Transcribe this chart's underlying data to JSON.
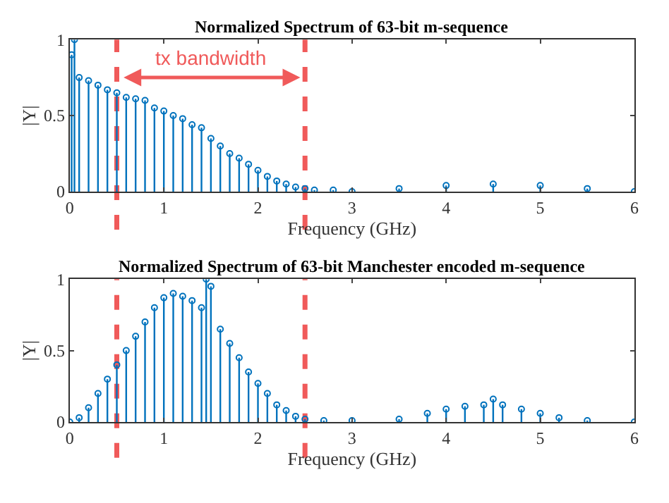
{
  "chart_data": [
    {
      "type": "lollipop",
      "title": "Normalized Spectrum of 63-bit m-sequence",
      "xlabel": "Frequency (GHz)",
      "ylabel": "|Y|",
      "x": [
        0.02,
        0.05,
        0.1,
        0.2,
        0.3,
        0.4,
        0.5,
        0.6,
        0.7,
        0.8,
        0.9,
        1.0,
        1.1,
        1.2,
        1.3,
        1.4,
        1.5,
        1.6,
        1.7,
        1.8,
        1.9,
        2.0,
        2.1,
        2.2,
        2.3,
        2.4,
        2.5,
        2.6,
        2.8,
        3.0,
        3.5,
        4.0,
        4.5,
        5.0,
        5.5,
        6.0
      ],
      "series": [
        {
          "color": "#0072bd",
          "values": [
            0.9,
            1.0,
            0.75,
            0.73,
            0.7,
            0.67,
            0.65,
            0.62,
            0.61,
            0.6,
            0.55,
            0.53,
            0.5,
            0.48,
            0.44,
            0.42,
            0.35,
            0.3,
            0.25,
            0.22,
            0.18,
            0.14,
            0.1,
            0.07,
            0.05,
            0.03,
            0.02,
            0.01,
            0.01,
            0.0,
            0.02,
            0.04,
            0.05,
            0.04,
            0.02,
            0.0
          ]
        }
      ],
      "marker": "circle",
      "xlim": [
        0,
        6
      ],
      "xticks": [
        0,
        1,
        2,
        3,
        4,
        5,
        6
      ],
      "ylim": [
        0,
        1
      ],
      "yticks": [
        0,
        0.5,
        1
      ],
      "ref_lines": [
        {
          "axis": "x",
          "value": 0.5,
          "color": "#f05a5a",
          "line_style": "dashed"
        },
        {
          "axis": "x",
          "value": 2.5,
          "color": "#f05a5a",
          "line_style": "dashed"
        }
      ],
      "annotations": [
        "tx bandwidth"
      ]
    },
    {
      "type": "lollipop",
      "title": "Normalized Spectrum of 63-bit Manchester encoded m-sequence",
      "xlabel": "Frequency (GHz)",
      "ylabel": "|Y|",
      "x": [
        0.0,
        0.1,
        0.2,
        0.3,
        0.4,
        0.5,
        0.6,
        0.7,
        0.8,
        0.9,
        1.0,
        1.1,
        1.2,
        1.3,
        1.4,
        1.45,
        1.5,
        1.6,
        1.7,
        1.8,
        1.9,
        2.0,
        2.1,
        2.2,
        2.3,
        2.4,
        2.5,
        2.7,
        3.0,
        3.5,
        3.8,
        4.0,
        4.2,
        4.4,
        4.5,
        4.6,
        4.8,
        5.0,
        5.2,
        5.5,
        6.0
      ],
      "series": [
        {
          "color": "#0072bd",
          "values": [
            0.0,
            0.03,
            0.1,
            0.2,
            0.3,
            0.4,
            0.5,
            0.6,
            0.7,
            0.8,
            0.87,
            0.9,
            0.88,
            0.85,
            0.8,
            1.0,
            0.95,
            0.65,
            0.55,
            0.45,
            0.35,
            0.27,
            0.2,
            0.12,
            0.08,
            0.04,
            0.02,
            0.01,
            0.01,
            0.02,
            0.06,
            0.09,
            0.11,
            0.12,
            0.16,
            0.12,
            0.09,
            0.06,
            0.03,
            0.01,
            0.0
          ]
        }
      ],
      "marker": "circle",
      "xlim": [
        0,
        6
      ],
      "xticks": [
        0,
        1,
        2,
        3,
        4,
        5,
        6
      ],
      "ylim": [
        0,
        1
      ],
      "yticks": [
        0,
        0.5,
        1
      ],
      "ref_lines": [
        {
          "axis": "x",
          "value": 0.5,
          "color": "#f05a5a",
          "line_style": "dashed"
        },
        {
          "axis": "x",
          "value": 2.5,
          "color": "#f05a5a",
          "line_style": "dashed"
        }
      ]
    }
  ]
}
